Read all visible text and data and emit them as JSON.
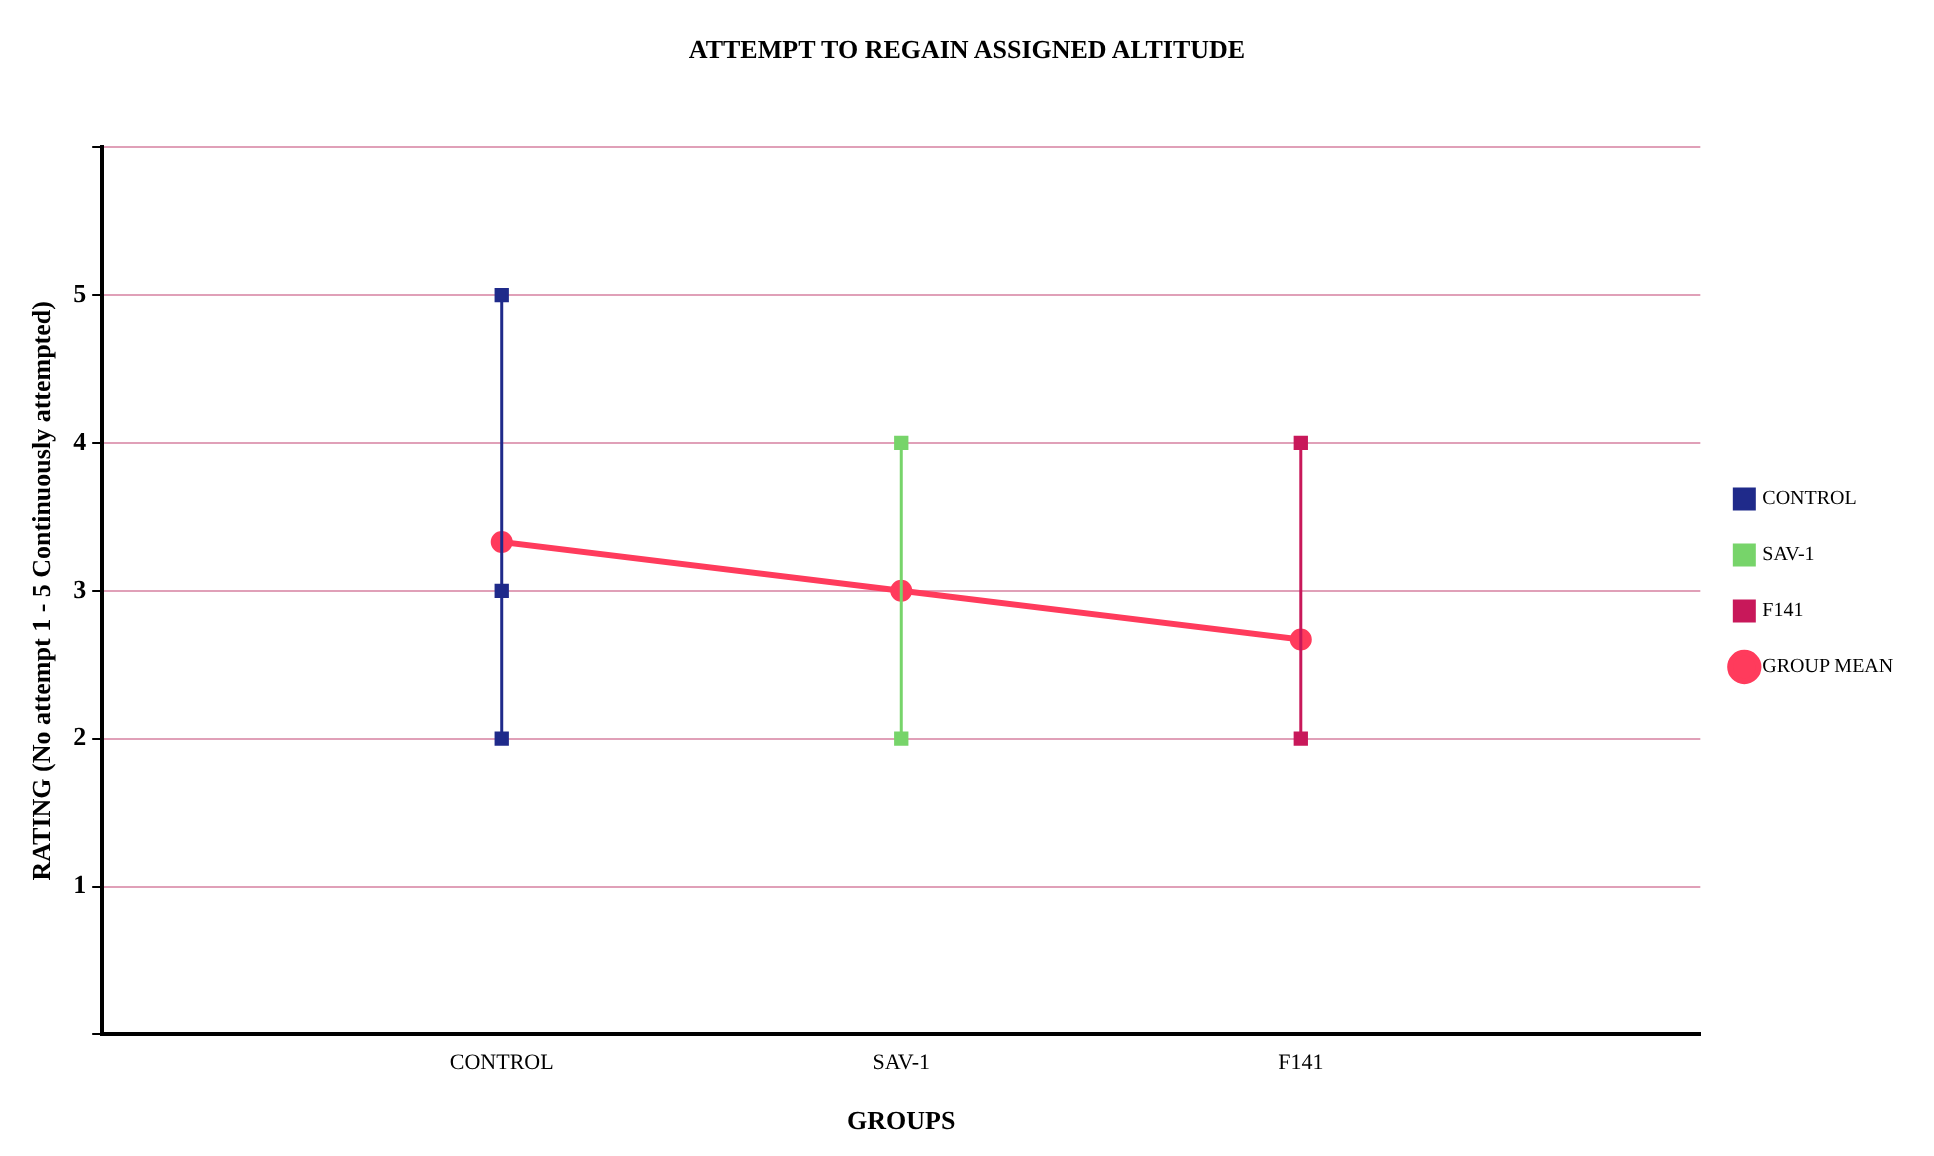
{
  "chart_data": {
    "type": "line",
    "title": "ATTEMPT TO REGAIN ASSIGNED ALTITUDE",
    "xlabel": "GROUPS",
    "ylabel": "RATING (No attempt 1 - 5 Continuously attempted)",
    "categories": [
      null,
      "CONTROL",
      "SAV-1",
      "F141",
      null
    ],
    "series": [
      {
        "name": "CONTROL",
        "color": "#1f2a8a",
        "marker": "square",
        "x": [
          "CONTROL",
          "CONTROL",
          "CONTROL"
        ],
        "values": [
          5,
          3,
          2
        ]
      },
      {
        "name": "SAV-1",
        "color": "#77d46a",
        "marker": "square",
        "x": [
          "SAV-1",
          "SAV-1"
        ],
        "values": [
          4,
          2
        ]
      },
      {
        "name": "F141",
        "color": "#c8185a",
        "marker": "square",
        "x": [
          "F141",
          "F141"
        ],
        "values": [
          4,
          2
        ]
      },
      {
        "name": "GROUP MEAN",
        "color": "#ff3b5c",
        "marker": "circle",
        "x": [
          "CONTROL",
          "SAV-1",
          "F141"
        ],
        "values": [
          3.33,
          3,
          2.67
        ]
      }
    ],
    "ylim": [
      0,
      6
    ],
    "yticks": [
      {
        "value": 0,
        "label": null
      },
      1,
      2,
      3,
      4,
      5,
      {
        "value": 6,
        "label": null
      }
    ],
    "grid": "y",
    "legend": "right",
    "line_style": "solid"
  }
}
